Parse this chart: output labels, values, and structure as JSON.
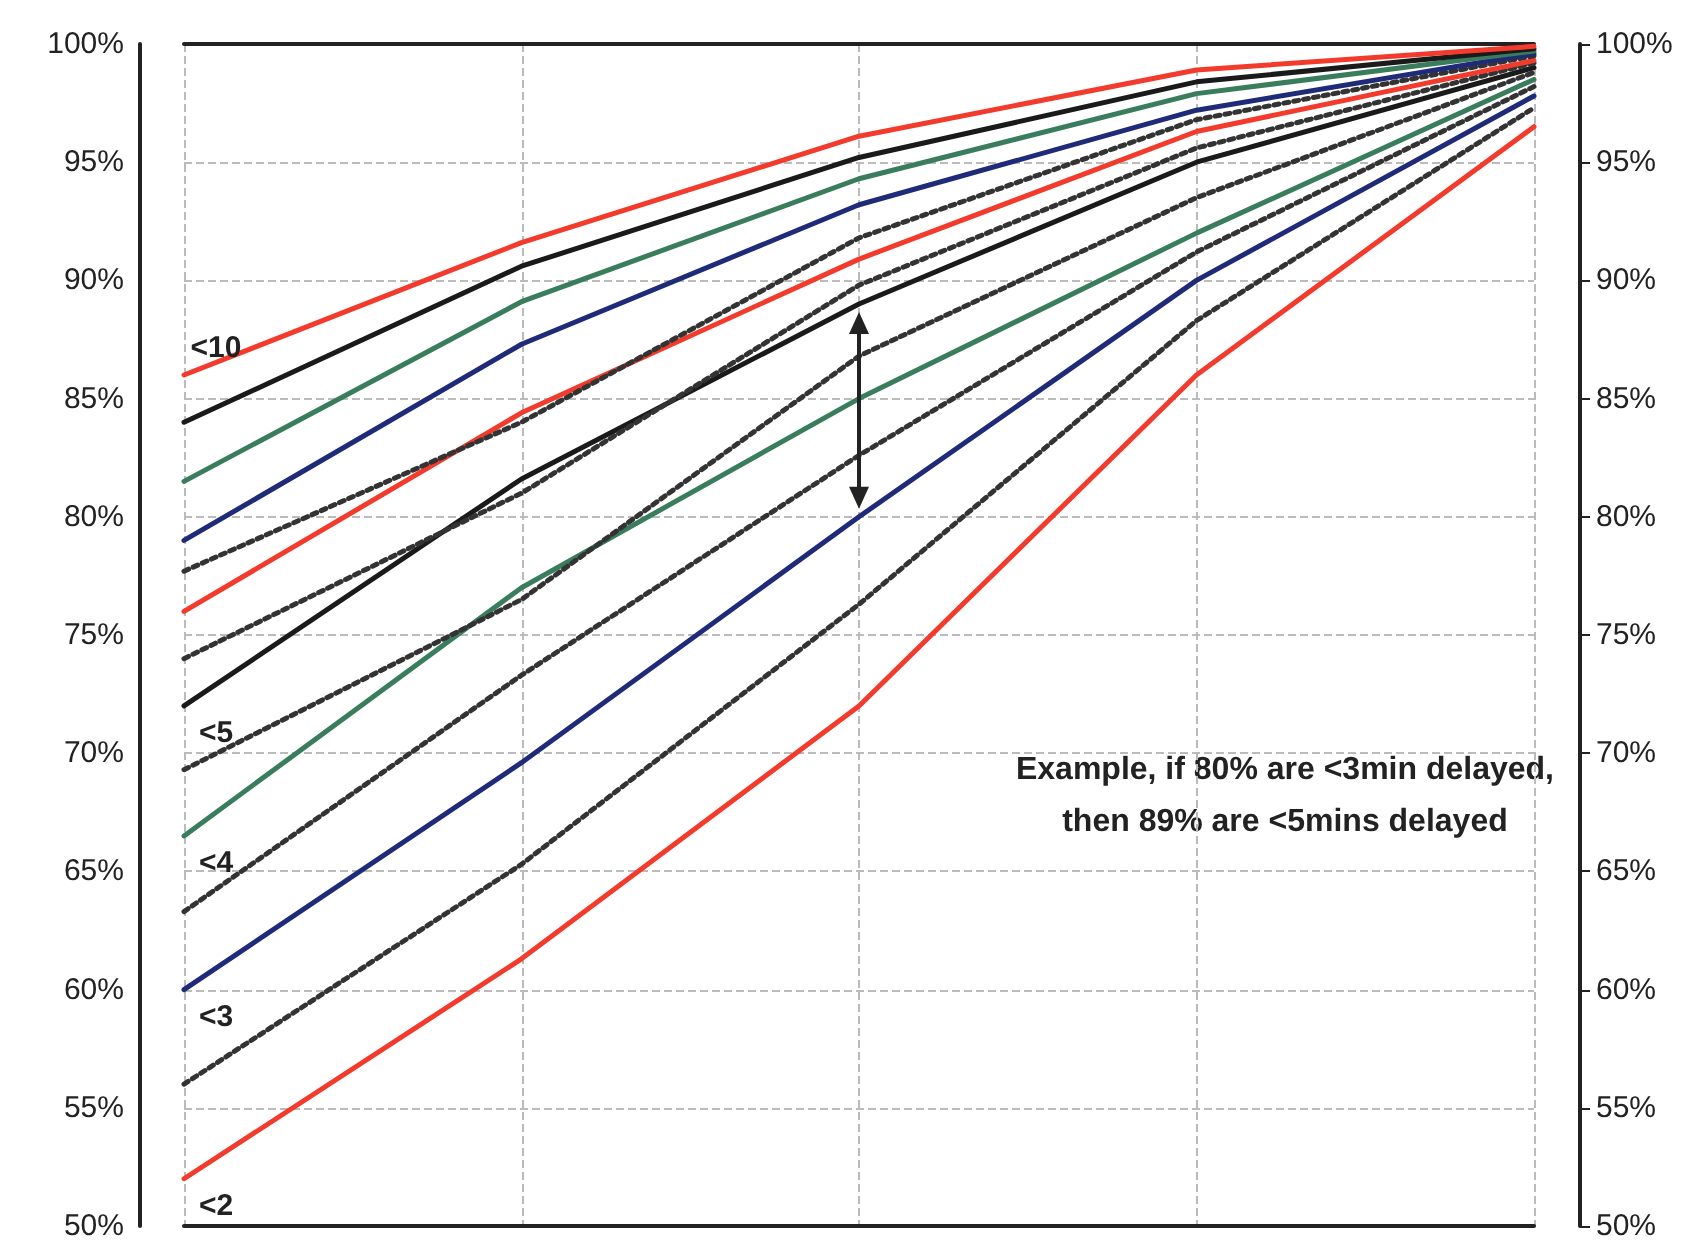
{
  "chart_data": {
    "type": "line",
    "categories": [
      null,
      null,
      null,
      null,
      null
    ],
    "ylim": [
      50,
      100
    ],
    "yticks": [
      {
        "value": 50,
        "label": "50%"
      },
      {
        "value": 55,
        "label": "55%"
      },
      {
        "value": 60,
        "label": "60%"
      },
      {
        "value": 65,
        "label": "65%"
      },
      {
        "value": 70,
        "label": "70%"
      },
      {
        "value": 75,
        "label": "75%"
      },
      {
        "value": 80,
        "label": "80%"
      },
      {
        "value": 85,
        "label": "85%"
      },
      {
        "value": 90,
        "label": "90%"
      },
      {
        "value": 95,
        "label": "95%"
      },
      {
        "value": 100,
        "label": "100%"
      }
    ],
    "y2lim": [
      50,
      100
    ],
    "y2ticks": [
      {
        "value": 50,
        "label": "50%"
      },
      {
        "value": 55,
        "label": "55%"
      },
      {
        "value": 60,
        "label": "60%"
      },
      {
        "value": 65,
        "label": "65%"
      },
      {
        "value": 70,
        "label": "70%"
      },
      {
        "value": 75,
        "label": "75%"
      },
      {
        "value": 80,
        "label": "80%"
      },
      {
        "value": 85,
        "label": "85%"
      },
      {
        "value": 90,
        "label": "90%"
      },
      {
        "value": 95,
        "label": "95%"
      },
      {
        "value": 100,
        "label": "100%"
      }
    ],
    "tick_labels": "y",
    "grid": true,
    "marker": "none",
    "line_style": "solid",
    "series": [
      {
        "name": "<2",
        "color": "#f23b2c",
        "values": [
          52,
          61.3,
          72,
          86,
          96.5
        ]
      },
      {
        "color": "#333333",
        "line_style": "dotted",
        "values": [
          56,
          65.3,
          76.3,
          88.3,
          97.3
        ]
      },
      {
        "name": "<3",
        "color": "#1f2a78",
        "values": [
          60,
          69.6,
          80,
          90,
          97.8
        ]
      },
      {
        "color": "#333333",
        "line_style": "dotted",
        "values": [
          63.3,
          73.3,
          82.6,
          91.2,
          98.2
        ]
      },
      {
        "name": "<4",
        "color": "#3a7d5c",
        "values": [
          66.5,
          77,
          85,
          92,
          98.5
        ]
      },
      {
        "color": "#333333",
        "line_style": "dotted",
        "values": [
          69.3,
          76.5,
          86.8,
          93.5,
          98.8
        ]
      },
      {
        "name": "<5",
        "color": "#1a1a1a",
        "values": [
          72,
          81.6,
          89,
          95,
          99
        ]
      },
      {
        "color": "#333333",
        "line_style": "dotted",
        "values": [
          74,
          81,
          89.8,
          95.6,
          99.2
        ]
      },
      {
        "color": "#f23b2c",
        "values": [
          76,
          84.4,
          90.9,
          96.3,
          99.3
        ]
      },
      {
        "color": "#333333",
        "line_style": "dotted",
        "values": [
          77.7,
          84,
          91.8,
          96.8,
          99.5
        ]
      },
      {
        "color": "#1f2a78",
        "values": [
          79,
          87.3,
          93.2,
          97.2,
          99.6
        ]
      },
      {
        "color": "#3a7d5c",
        "values": [
          81.5,
          89.1,
          94.3,
          97.9,
          99.7
        ]
      },
      {
        "color": "#1a1a1a",
        "values": [
          84,
          90.6,
          95.2,
          98.4,
          99.8
        ]
      },
      {
        "name": "<10",
        "color": "#f23b2c",
        "values": [
          86,
          91.6,
          96.1,
          98.9,
          99.9
        ]
      }
    ],
    "annotations": [
      "Example, if 80% are <3min delayed,\nthen 89% are <5mins delayed"
    ]
  }
}
